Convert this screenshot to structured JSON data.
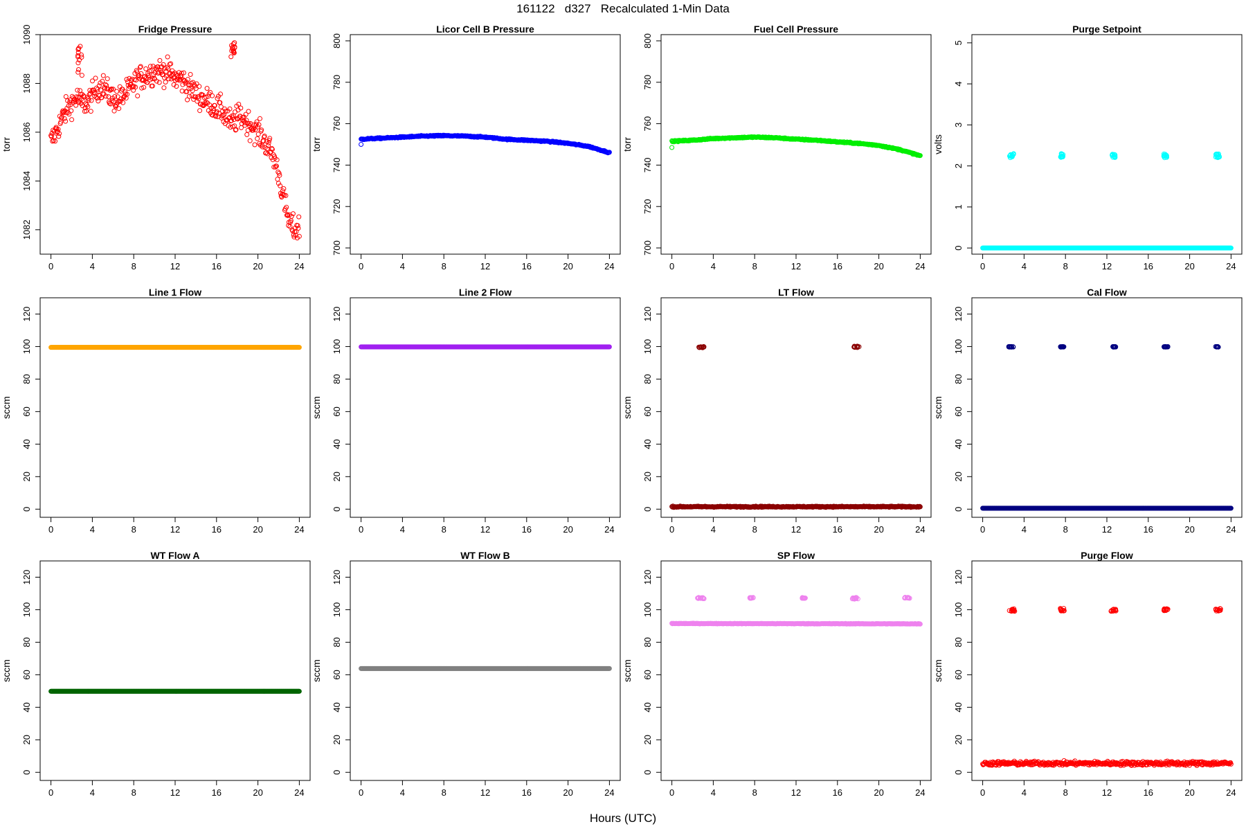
{
  "page": {
    "title": "161122   d327   Recalculated 1-Min Data",
    "xlabel": "Hours (UTC)"
  },
  "chart_data": [
    {
      "type": "scatter",
      "title": "Fridge Pressure",
      "ylabel": "torr",
      "color": "#ff0000",
      "xlim": [
        0,
        24
      ],
      "ylim": [
        1081,
        1090
      ],
      "xticks": [
        0,
        4,
        8,
        12,
        16,
        20,
        24
      ],
      "yticks": [
        1082,
        1084,
        1086,
        1088,
        1090
      ],
      "trend": [
        [
          0.0,
          1085.6
        ],
        [
          0.5,
          1086.0
        ],
        [
          1.0,
          1086.5
        ],
        [
          1.5,
          1086.9
        ],
        [
          2.0,
          1087.2
        ],
        [
          2.5,
          1087.4
        ],
        [
          3.0,
          1087.2
        ],
        [
          3.5,
          1087.2
        ],
        [
          4.0,
          1087.5
        ],
        [
          4.5,
          1087.8
        ],
        [
          5.0,
          1087.9
        ],
        [
          5.5,
          1087.6
        ],
        [
          6.0,
          1087.4
        ],
        [
          6.5,
          1087.3
        ],
        [
          7.0,
          1087.5
        ],
        [
          7.5,
          1087.7
        ],
        [
          8.0,
          1088.0
        ],
        [
          8.5,
          1088.2
        ],
        [
          9.0,
          1088.3
        ],
        [
          9.5,
          1088.4
        ],
        [
          10.0,
          1088.5
        ],
        [
          10.5,
          1088.5
        ],
        [
          11.0,
          1088.5
        ],
        [
          11.5,
          1088.4
        ],
        [
          12.0,
          1088.2
        ],
        [
          12.5,
          1088.2
        ],
        [
          13.0,
          1088.0
        ],
        [
          13.5,
          1087.8
        ],
        [
          14.0,
          1087.6
        ],
        [
          14.5,
          1087.4
        ],
        [
          15.0,
          1087.3
        ],
        [
          15.5,
          1087.2
        ],
        [
          16.0,
          1087.0
        ],
        [
          16.5,
          1086.9
        ],
        [
          17.0,
          1086.6
        ],
        [
          17.5,
          1086.3
        ],
        [
          18.0,
          1086.6
        ],
        [
          18.5,
          1086.6
        ],
        [
          19.0,
          1086.4
        ],
        [
          19.5,
          1086.2
        ],
        [
          20.0,
          1086.0
        ],
        [
          20.5,
          1085.7
        ],
        [
          21.0,
          1085.4
        ],
        [
          21.5,
          1085.0
        ],
        [
          22.0,
          1084.3
        ],
        [
          22.5,
          1083.2
        ],
        [
          23.0,
          1082.3
        ],
        [
          23.5,
          1082.0
        ],
        [
          24.0,
          1082.1
        ]
      ],
      "spread": 0.9,
      "clusters": [
        {
          "x": [
            2.6,
            3.0
          ],
          "y": [
            1088.2,
            1089.6
          ]
        },
        {
          "x": [
            17.4,
            17.8
          ],
          "y": [
            1089.0,
            1089.7
          ]
        }
      ]
    },
    {
      "type": "scatter",
      "title": "Licor Cell B Pressure",
      "ylabel": "torr",
      "color": "#0000ff",
      "xlim": [
        0,
        24
      ],
      "ylim": [
        697,
        803
      ],
      "xticks": [
        0,
        4,
        8,
        12,
        16,
        20,
        24
      ],
      "yticks": [
        700,
        720,
        740,
        760,
        780,
        800
      ],
      "trend": [
        [
          0,
          752.5
        ],
        [
          2,
          753.0
        ],
        [
          4,
          753.5
        ],
        [
          6,
          754.0
        ],
        [
          8,
          754.2
        ],
        [
          10,
          754.0
        ],
        [
          12,
          753.5
        ],
        [
          14,
          752.5
        ],
        [
          16,
          752.0
        ],
        [
          18,
          751.5
        ],
        [
          20,
          750.5
        ],
        [
          22,
          749.0
        ],
        [
          24,
          746.0
        ]
      ],
      "spread": 0.5,
      "outliers": [
        [
          0.0,
          750.0
        ]
      ]
    },
    {
      "type": "scatter",
      "title": "Fuel Cell Pressure",
      "ylabel": "torr",
      "color": "#00ee00",
      "xlim": [
        0,
        24
      ],
      "ylim": [
        697,
        803
      ],
      "xticks": [
        0,
        4,
        8,
        12,
        16,
        20,
        24
      ],
      "yticks": [
        700,
        720,
        740,
        760,
        780,
        800
      ],
      "trend": [
        [
          0,
          751.5
        ],
        [
          2,
          752.0
        ],
        [
          4,
          752.8
        ],
        [
          6,
          753.2
        ],
        [
          8,
          753.5
        ],
        [
          10,
          753.2
        ],
        [
          12,
          752.5
        ],
        [
          14,
          752.0
        ],
        [
          16,
          751.2
        ],
        [
          18,
          750.5
        ],
        [
          20,
          749.5
        ],
        [
          22,
          747.5
        ],
        [
          24,
          744.5
        ]
      ],
      "spread": 0.5,
      "outliers": [
        [
          0.0,
          748.5
        ]
      ]
    },
    {
      "type": "scatter",
      "title": "Purge Setpoint",
      "ylabel": "volts",
      "color": "#00ffff",
      "xlim": [
        0,
        24
      ],
      "ylim": [
        -0.15,
        5.2
      ],
      "xticks": [
        0,
        4,
        8,
        12,
        16,
        20,
        24
      ],
      "yticks": [
        0,
        1,
        2,
        3,
        4,
        5
      ],
      "trend": [
        [
          0,
          0
        ],
        [
          24,
          0
        ]
      ],
      "spread": 0.0,
      "clusters": [
        {
          "x": [
            2.5,
            3.0
          ],
          "y": [
            2.2,
            2.3
          ]
        },
        {
          "x": [
            7.5,
            7.8
          ],
          "y": [
            2.2,
            2.3
          ]
        },
        {
          "x": [
            12.5,
            12.8
          ],
          "y": [
            2.2,
            2.3
          ]
        },
        {
          "x": [
            17.5,
            17.8
          ],
          "y": [
            2.2,
            2.3
          ]
        },
        {
          "x": [
            22.5,
            22.9
          ],
          "y": [
            2.2,
            2.3
          ]
        }
      ]
    },
    {
      "type": "scatter",
      "title": "Line 1 Flow",
      "ylabel": "sccm",
      "color": "#ffa500",
      "xlim": [
        0,
        24
      ],
      "ylim": [
        -5,
        130
      ],
      "xticks": [
        0,
        4,
        8,
        12,
        16,
        20,
        24
      ],
      "yticks": [
        0,
        20,
        40,
        60,
        80,
        100,
        120
      ],
      "trend": [
        [
          0,
          99.5
        ],
        [
          24,
          99.5
        ]
      ],
      "spread": 0.0
    },
    {
      "type": "scatter",
      "title": "Line 2 Flow",
      "ylabel": "sccm",
      "color": "#a020f0",
      "xlim": [
        0,
        24
      ],
      "ylim": [
        -5,
        130
      ],
      "xticks": [
        0,
        4,
        8,
        12,
        16,
        20,
        24
      ],
      "yticks": [
        0,
        20,
        40,
        60,
        80,
        100,
        120
      ],
      "trend": [
        [
          0,
          99.8
        ],
        [
          24,
          99.8
        ]
      ],
      "spread": 0.0
    },
    {
      "type": "scatter",
      "title": "LT Flow",
      "ylabel": "sccm",
      "color": "#8b0000",
      "xlim": [
        0,
        24
      ],
      "ylim": [
        -5,
        130
      ],
      "xticks": [
        0,
        4,
        8,
        12,
        16,
        20,
        24
      ],
      "yticks": [
        0,
        20,
        40,
        60,
        80,
        100,
        120
      ],
      "trend": [
        [
          0,
          1.5
        ],
        [
          24,
          1.5
        ]
      ],
      "spread": 0.6,
      "clusters": [
        {
          "x": [
            2.6,
            3.1
          ],
          "y": [
            99.3,
            100.0
          ]
        },
        {
          "x": [
            17.6,
            18.1
          ],
          "y": [
            99.3,
            100.3
          ]
        }
      ]
    },
    {
      "type": "scatter",
      "title": "Cal Flow",
      "ylabel": "sccm",
      "color": "#000080",
      "xlim": [
        0,
        24
      ],
      "ylim": [
        -5,
        130
      ],
      "xticks": [
        0,
        4,
        8,
        12,
        16,
        20,
        24
      ],
      "yticks": [
        0,
        20,
        40,
        60,
        80,
        100,
        120
      ],
      "trend": [
        [
          0,
          0.6
        ],
        [
          24,
          0.6
        ]
      ],
      "spread": 0.0,
      "clusters": [
        {
          "x": [
            2.5,
            3.1
          ],
          "y": [
            99.6,
            100.0
          ]
        },
        {
          "x": [
            7.5,
            7.9
          ],
          "y": [
            99.6,
            100.0
          ]
        },
        {
          "x": [
            12.5,
            12.9
          ],
          "y": [
            99.6,
            100.0
          ]
        },
        {
          "x": [
            17.5,
            17.9
          ],
          "y": [
            99.6,
            100.0
          ]
        },
        {
          "x": [
            22.5,
            22.9
          ],
          "y": [
            99.6,
            100.0
          ]
        }
      ]
    },
    {
      "type": "scatter",
      "title": "WT Flow A",
      "ylabel": "sccm",
      "color": "#006400",
      "xlim": [
        0,
        24
      ],
      "ylim": [
        -5,
        130
      ],
      "xticks": [
        0,
        4,
        8,
        12,
        16,
        20,
        24
      ],
      "yticks": [
        0,
        20,
        40,
        60,
        80,
        100,
        120
      ],
      "trend": [
        [
          0,
          49.8
        ],
        [
          24,
          49.8
        ]
      ],
      "spread": 0.0
    },
    {
      "type": "scatter",
      "title": "WT Flow B",
      "ylabel": "sccm",
      "color": "#808080",
      "xlim": [
        0,
        24
      ],
      "ylim": [
        -5,
        130
      ],
      "xticks": [
        0,
        4,
        8,
        12,
        16,
        20,
        24
      ],
      "yticks": [
        0,
        20,
        40,
        60,
        80,
        100,
        120
      ],
      "trend": [
        [
          0,
          63.8
        ],
        [
          24,
          63.8
        ]
      ],
      "spread": 0.0
    },
    {
      "type": "scatter",
      "title": "SP Flow",
      "ylabel": "sccm",
      "color": "#ee82ee",
      "xlim": [
        0,
        24
      ],
      "ylim": [
        -5,
        130
      ],
      "xticks": [
        0,
        4,
        8,
        12,
        16,
        20,
        24
      ],
      "yticks": [
        0,
        20,
        40,
        60,
        80,
        100,
        120
      ],
      "trend": [
        [
          0,
          91.5
        ],
        [
          24,
          91.3
        ]
      ],
      "spread": 0.3,
      "clusters": [
        {
          "x": [
            2.4,
            3.2
          ],
          "y": [
            106.8,
            107.6
          ]
        },
        {
          "x": [
            7.5,
            7.9
          ],
          "y": [
            107.0,
            107.6
          ]
        },
        {
          "x": [
            12.4,
            12.9
          ],
          "y": [
            107.0,
            107.6
          ]
        },
        {
          "x": [
            17.4,
            18.0
          ],
          "y": [
            106.5,
            107.6
          ]
        },
        {
          "x": [
            22.4,
            23.0
          ],
          "y": [
            107.0,
            107.6
          ]
        }
      ]
    },
    {
      "type": "scatter",
      "title": "Purge Flow",
      "ylabel": "sccm",
      "color": "#ff0000",
      "xlim": [
        0,
        24
      ],
      "ylim": [
        -5,
        130
      ],
      "xticks": [
        0,
        4,
        8,
        12,
        16,
        20,
        24
      ],
      "yticks": [
        0,
        20,
        40,
        60,
        80,
        100,
        120
      ],
      "trend": [
        [
          0,
          5.5
        ],
        [
          24,
          5.5
        ]
      ],
      "spread": 2.2,
      "clusters": [
        {
          "x": [
            2.5,
            3.1
          ],
          "y": [
            99.0,
            100.6
          ]
        },
        {
          "x": [
            7.5,
            7.9
          ],
          "y": [
            99.2,
            100.8
          ]
        },
        {
          "x": [
            12.4,
            12.9
          ],
          "y": [
            99.0,
            100.4
          ]
        },
        {
          "x": [
            17.5,
            17.9
          ],
          "y": [
            99.4,
            100.6
          ]
        },
        {
          "x": [
            22.5,
            23.0
          ],
          "y": [
            99.2,
            100.8
          ]
        }
      ]
    }
  ]
}
